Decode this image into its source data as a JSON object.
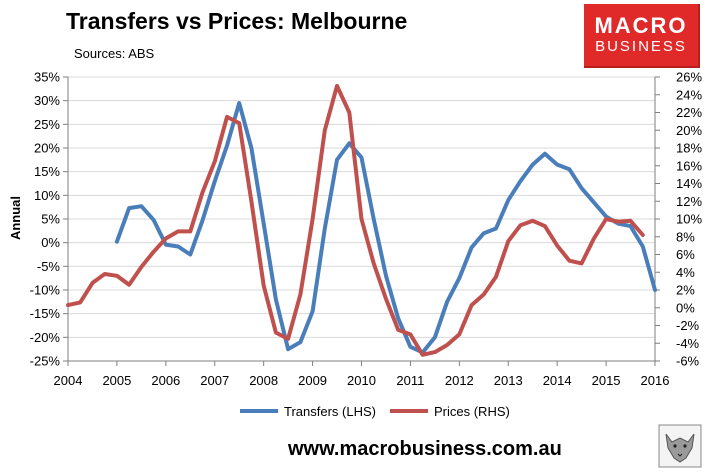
{
  "header": {
    "title": "Transfers vs Prices: Melbourne",
    "subtitle": "Sources: ABS"
  },
  "logo": {
    "line1": "MACRO",
    "line2": "BUSINESS",
    "color": "#e02a2a"
  },
  "footer": {
    "url": "www.macrobusiness.com.au"
  },
  "chart_data": {
    "type": "line",
    "ylabel": "Annual",
    "y_left": {
      "min": -25,
      "max": 35,
      "step": 5,
      "ticks": [
        "35%",
        "30%",
        "25%",
        "20%",
        "15%",
        "10%",
        "5%",
        "0%",
        "-5%",
        "-10%",
        "-15%",
        "-20%",
        "-25%"
      ]
    },
    "y_right": {
      "min": -6,
      "max": 26,
      "step": 2,
      "ticks": [
        "26%",
        "24%",
        "22%",
        "20%",
        "18%",
        "16%",
        "14%",
        "12%",
        "10%",
        "8%",
        "6%",
        "4%",
        "2%",
        "0%",
        "-2%",
        "-4%",
        "-6%"
      ]
    },
    "x_axis": {
      "min": 2004,
      "max": 2016,
      "ticks": [
        "2004",
        "2005",
        "2006",
        "2007",
        "2008",
        "2009",
        "2010",
        "2011",
        "2012",
        "2013",
        "2014",
        "2015",
        "2016"
      ]
    },
    "grid": "horizontal",
    "legend_position": "bottom",
    "series": [
      {
        "name": "Transfers (LHS)",
        "axis": "left",
        "color": "#4a7ebb",
        "points": [
          [
            2005.0,
            0.2
          ],
          [
            2005.25,
            7.3
          ],
          [
            2005.5,
            7.7
          ],
          [
            2005.75,
            4.8
          ],
          [
            2006.0,
            -0.4
          ],
          [
            2006.25,
            -0.8
          ],
          [
            2006.5,
            -2.5
          ],
          [
            2006.75,
            4.7
          ],
          [
            2007.0,
            13.0
          ],
          [
            2007.25,
            20.5
          ],
          [
            2007.5,
            29.5
          ],
          [
            2007.75,
            20.0
          ],
          [
            2008.0,
            4.0
          ],
          [
            2008.25,
            -12.0
          ],
          [
            2008.5,
            -22.5
          ],
          [
            2008.75,
            -21.0
          ],
          [
            2009.0,
            -14.5
          ],
          [
            2009.25,
            3.0
          ],
          [
            2009.5,
            17.5
          ],
          [
            2009.75,
            21.0
          ],
          [
            2010.0,
            18.0
          ],
          [
            2010.25,
            5.0
          ],
          [
            2010.5,
            -7.0
          ],
          [
            2010.75,
            -16.0
          ],
          [
            2011.0,
            -22.0
          ],
          [
            2011.25,
            -23.2
          ],
          [
            2011.5,
            -20.0
          ],
          [
            2011.75,
            -12.5
          ],
          [
            2012.0,
            -7.5
          ],
          [
            2012.25,
            -1.0
          ],
          [
            2012.5,
            2.0
          ],
          [
            2012.75,
            3.0
          ],
          [
            2013.0,
            9.0
          ],
          [
            2013.25,
            13.0
          ],
          [
            2013.5,
            16.5
          ],
          [
            2013.75,
            18.8
          ],
          [
            2014.0,
            16.5
          ],
          [
            2014.25,
            15.5
          ],
          [
            2014.5,
            11.5
          ],
          [
            2014.75,
            8.5
          ],
          [
            2015.0,
            5.5
          ],
          [
            2015.25,
            4.0
          ],
          [
            2015.5,
            3.5
          ],
          [
            2015.75,
            -0.8
          ],
          [
            2016.0,
            -10.0
          ]
        ]
      },
      {
        "name": "Prices (RHS)",
        "axis": "right",
        "color": "#c0504d",
        "points": [
          [
            2004.0,
            0.3
          ],
          [
            2004.25,
            0.6
          ],
          [
            2004.5,
            2.8
          ],
          [
            2004.75,
            3.8
          ],
          [
            2005.0,
            3.6
          ],
          [
            2005.25,
            2.6
          ],
          [
            2005.5,
            4.6
          ],
          [
            2005.75,
            6.3
          ],
          [
            2006.0,
            7.8
          ],
          [
            2006.25,
            8.6
          ],
          [
            2006.5,
            8.6
          ],
          [
            2006.75,
            13.0
          ],
          [
            2007.0,
            16.5
          ],
          [
            2007.25,
            21.5
          ],
          [
            2007.5,
            20.8
          ],
          [
            2007.75,
            12.0
          ],
          [
            2008.0,
            2.5
          ],
          [
            2008.25,
            -2.8
          ],
          [
            2008.5,
            -3.5
          ],
          [
            2008.75,
            1.5
          ],
          [
            2009.0,
            10.0
          ],
          [
            2009.25,
            20.0
          ],
          [
            2009.5,
            25.0
          ],
          [
            2009.75,
            22.0
          ],
          [
            2010.0,
            10.0
          ],
          [
            2010.25,
            5.0
          ],
          [
            2010.5,
            1.0
          ],
          [
            2010.75,
            -2.5
          ],
          [
            2011.0,
            -3.0
          ],
          [
            2011.25,
            -5.3
          ],
          [
            2011.5,
            -5.0
          ],
          [
            2011.75,
            -4.2
          ],
          [
            2012.0,
            -3.0
          ],
          [
            2012.25,
            0.3
          ],
          [
            2012.5,
            1.5
          ],
          [
            2012.75,
            3.5
          ],
          [
            2013.0,
            7.5
          ],
          [
            2013.25,
            9.3
          ],
          [
            2013.5,
            9.8
          ],
          [
            2013.75,
            9.2
          ],
          [
            2014.0,
            7.0
          ],
          [
            2014.25,
            5.3
          ],
          [
            2014.5,
            5.0
          ],
          [
            2014.75,
            7.8
          ],
          [
            2015.0,
            10.0
          ],
          [
            2015.25,
            9.7
          ],
          [
            2015.5,
            9.8
          ],
          [
            2015.75,
            8.2
          ]
        ]
      }
    ]
  }
}
